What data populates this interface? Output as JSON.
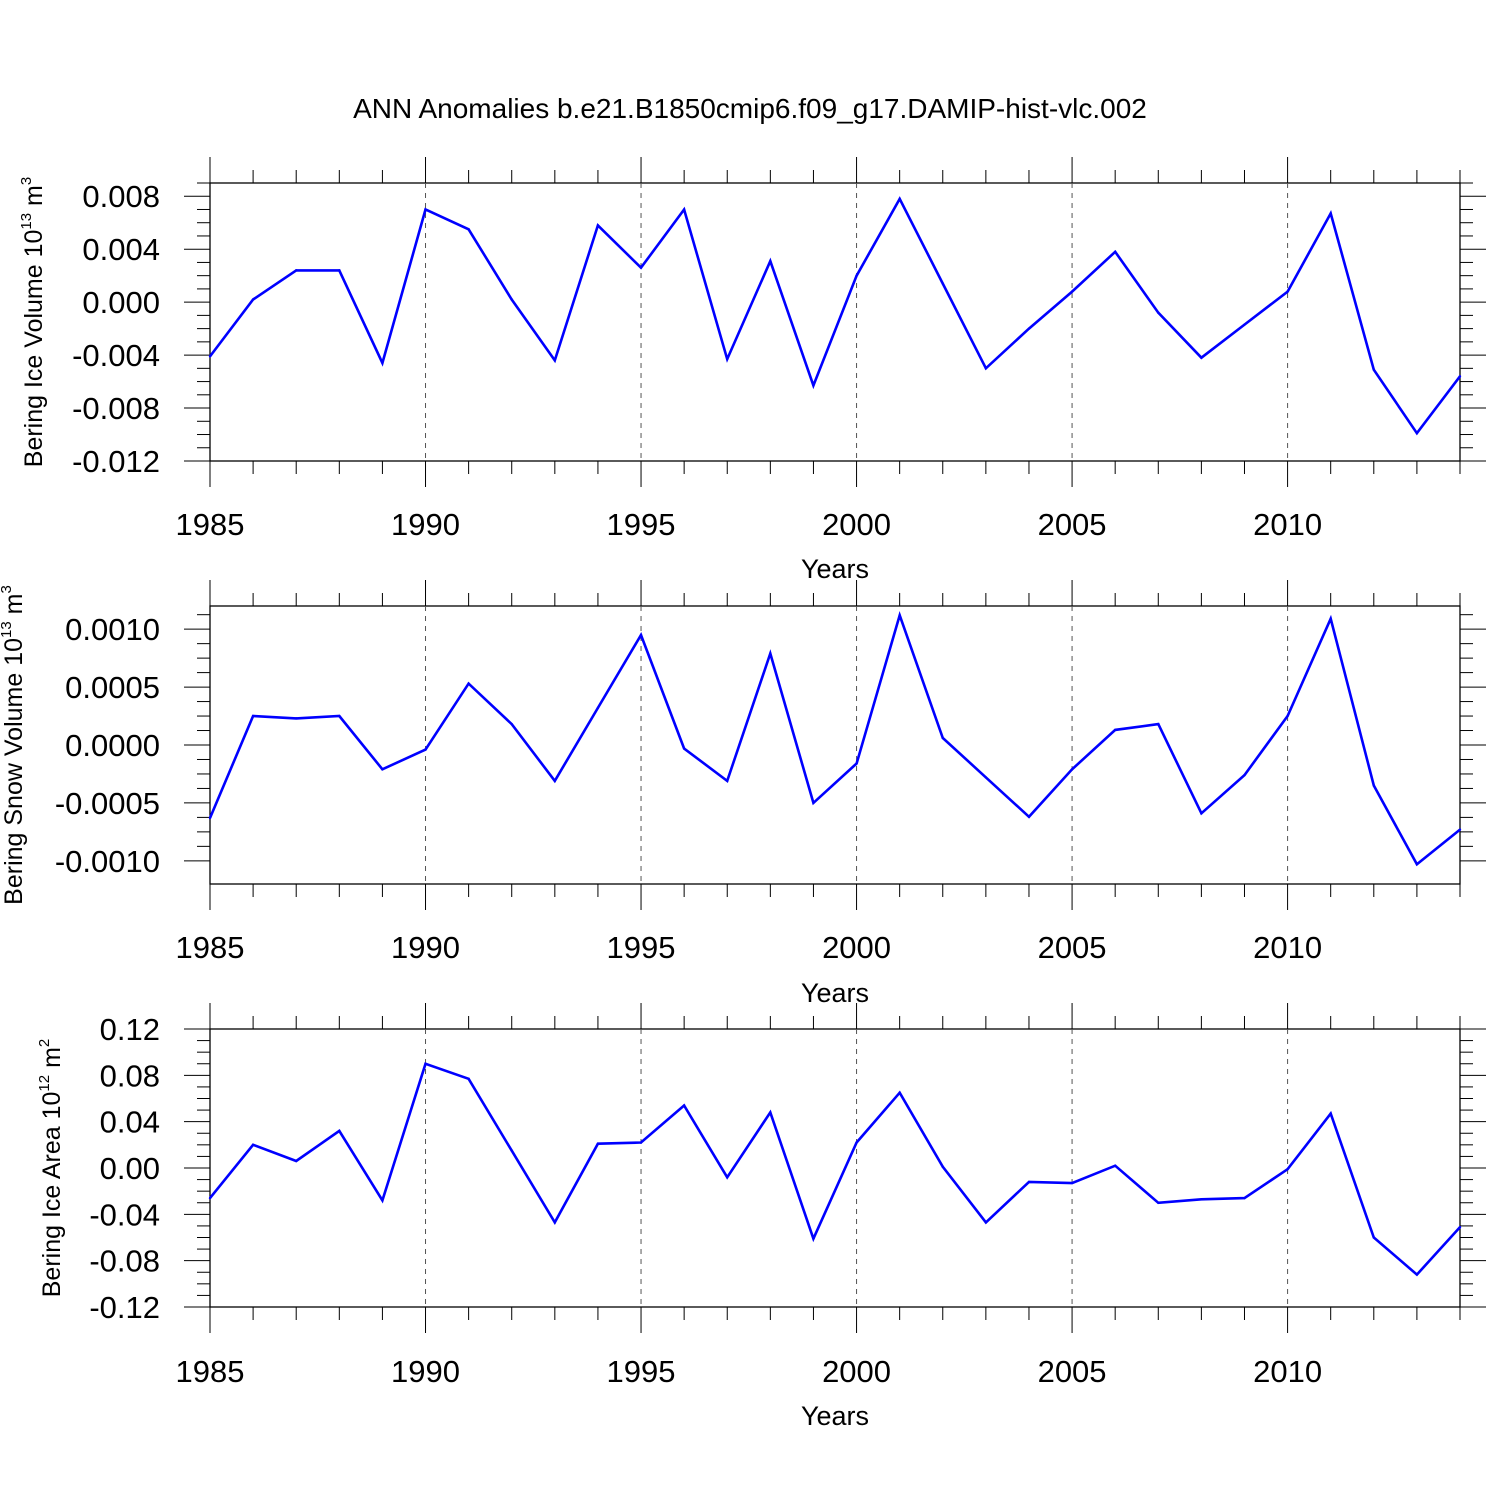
{
  "title": "ANN Anomalies b.e21.B1850cmip6.f09_g17.DAMIP-hist-vlc.002",
  "chart_data": [
    {
      "type": "line",
      "ylabel": {
        "text": "Bering Ice Volume 10",
        "exponent": "13",
        "unit": " m",
        "unit_exponent": "3"
      },
      "xlabel": "Years",
      "xlim": [
        1985,
        2014
      ],
      "ylim": [
        -0.012,
        0.009
      ],
      "x_ticks": [
        1985,
        1990,
        1995,
        2000,
        2005,
        2010
      ],
      "x_tick_labels": [
        "1985",
        "1990",
        "1995",
        "2000",
        "2005",
        "2010"
      ],
      "y_ticks": [
        0.008,
        0.004,
        0.0,
        -0.004,
        -0.008,
        -0.012
      ],
      "y_tick_labels": [
        "0.008",
        "0.004",
        "0.000",
        "-0.004",
        "-0.008",
        "-0.012"
      ],
      "grid": "vertical dashed at major x ticks",
      "line_color": "#0000ff",
      "x": [
        1985,
        1986,
        1987,
        1988,
        1989,
        1990,
        1991,
        1992,
        1993,
        1994,
        1995,
        1996,
        1997,
        1998,
        1999,
        2000,
        2001,
        2002,
        2003,
        2004,
        2005,
        2006,
        2007,
        2008,
        2009,
        2010,
        2011,
        2012,
        2013,
        2014
      ],
      "values": [
        -0.0041,
        0.0002,
        0.0024,
        0.0024,
        -0.0046,
        0.007,
        0.0055,
        0.0002,
        -0.0044,
        0.0058,
        0.0026,
        0.007,
        -0.0043,
        0.0031,
        -0.0063,
        0.002,
        0.0078,
        0.0014,
        -0.005,
        -0.002,
        0.0008,
        0.0038,
        -0.0008,
        -0.0042,
        -0.0017,
        0.0008,
        0.0067,
        -0.0051,
        -0.0099,
        -0.0056
      ]
    },
    {
      "type": "line",
      "ylabel": {
        "text": "Bering Snow Volume 10",
        "exponent": "13",
        "unit": " m",
        "unit_exponent": "3"
      },
      "xlabel": "Years",
      "xlim": [
        1985,
        2014
      ],
      "ylim": [
        -0.0012,
        0.0012
      ],
      "x_ticks": [
        1985,
        1990,
        1995,
        2000,
        2005,
        2010
      ],
      "x_tick_labels": [
        "1985",
        "1990",
        "1995",
        "2000",
        "2005",
        "2010"
      ],
      "y_ticks": [
        0.001,
        0.0005,
        0.0,
        -0.0005,
        -0.001
      ],
      "y_tick_labels": [
        "0.0010",
        "0.0005",
        "0.0000",
        "-0.0005",
        "-0.0010"
      ],
      "grid": "vertical dashed at major x ticks",
      "line_color": "#0000ff",
      "x": [
        1985,
        1986,
        1987,
        1988,
        1989,
        1990,
        1991,
        1992,
        1993,
        1994,
        1995,
        1996,
        1997,
        1998,
        1999,
        2000,
        2001,
        2002,
        2003,
        2004,
        2005,
        2006,
        2007,
        2008,
        2009,
        2010,
        2011,
        2012,
        2013,
        2014
      ],
      "values": [
        -0.00063,
        0.00025,
        0.00023,
        0.00025,
        -0.00021,
        -4e-05,
        0.00053,
        0.00018,
        -0.00031,
        0.00032,
        0.00095,
        -3e-05,
        -0.00031,
        0.00079,
        -0.0005,
        -0.00016,
        0.00112,
        6e-05,
        -0.00028,
        -0.00062,
        -0.00021,
        0.00013,
        0.00018,
        -0.00059,
        -0.00026,
        0.00025,
        0.00109,
        -0.00035,
        -0.00103,
        -0.00073
      ]
    },
    {
      "type": "line",
      "ylabel": {
        "text": "Bering Ice Area 10",
        "exponent": "12",
        "unit": " m",
        "unit_exponent": "2"
      },
      "xlabel": "Years",
      "xlim": [
        1985,
        2014
      ],
      "ylim": [
        -0.12,
        0.12
      ],
      "x_ticks": [
        1985,
        1990,
        1995,
        2000,
        2005,
        2010
      ],
      "x_tick_labels": [
        "1985",
        "1990",
        "1995",
        "2000",
        "2005",
        "2010"
      ],
      "y_ticks": [
        0.12,
        0.08,
        0.04,
        0.0,
        -0.04,
        -0.08,
        -0.12
      ],
      "y_tick_labels": [
        "0.12",
        "0.08",
        "0.04",
        "0.00",
        "-0.04",
        "-0.08",
        "-0.12"
      ],
      "grid": "vertical dashed at major x ticks",
      "line_color": "#0000ff",
      "x": [
        1985,
        1986,
        1987,
        1988,
        1989,
        1990,
        1991,
        1992,
        1993,
        1994,
        1995,
        1996,
        1997,
        1998,
        1999,
        2000,
        2001,
        2002,
        2003,
        2004,
        2005,
        2006,
        2007,
        2008,
        2009,
        2010,
        2011,
        2012,
        2013,
        2014
      ],
      "values": [
        -0.026,
        0.02,
        0.006,
        0.032,
        -0.028,
        0.09,
        0.077,
        0.015,
        -0.047,
        0.021,
        0.022,
        0.054,
        -0.008,
        0.048,
        -0.061,
        0.022,
        0.065,
        0.001,
        -0.047,
        -0.012,
        -0.013,
        0.002,
        -0.03,
        -0.027,
        -0.026,
        -0.001,
        0.047,
        -0.06,
        -0.092,
        -0.051
      ]
    }
  ]
}
